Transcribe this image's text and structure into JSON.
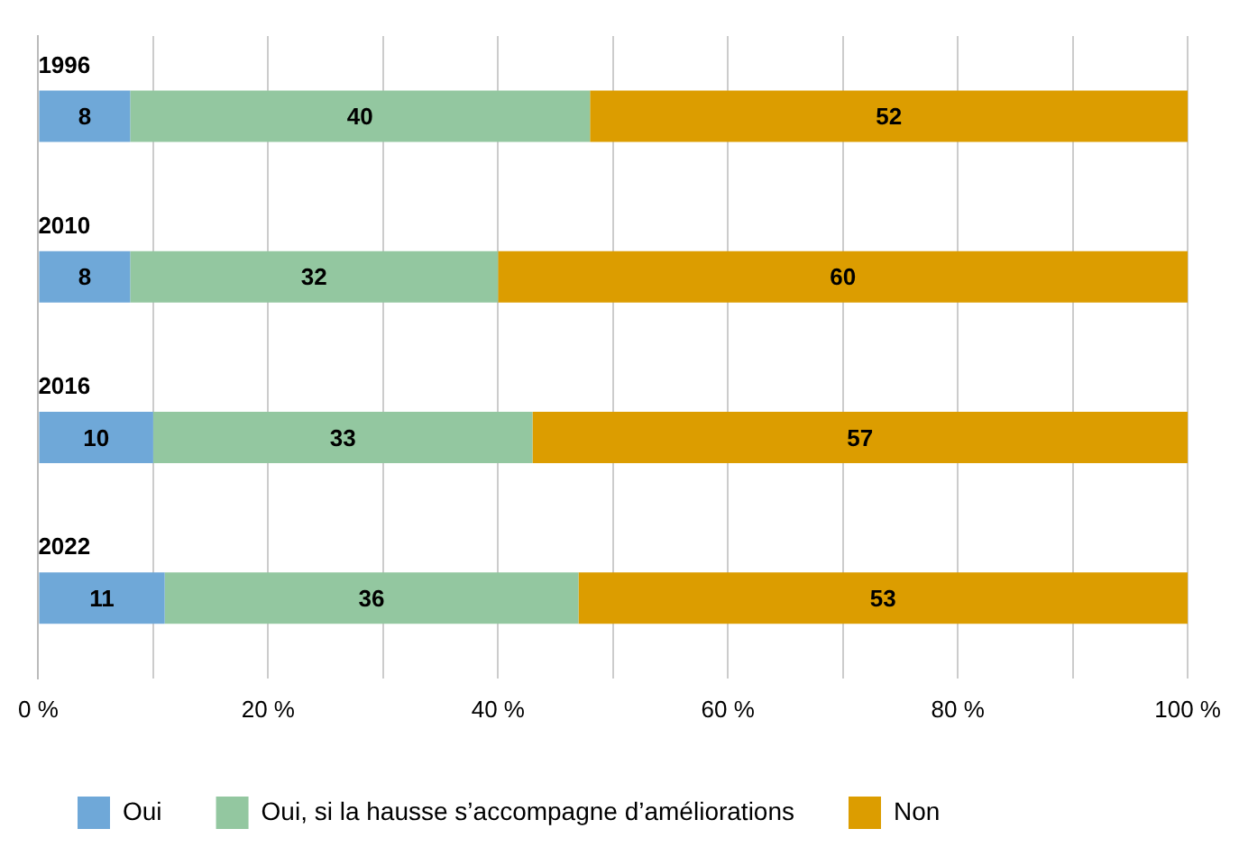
{
  "chart_data": {
    "type": "bar",
    "orientation": "horizontal",
    "stacked": true,
    "categories": [
      "1996",
      "2010",
      "2016",
      "2022"
    ],
    "series": [
      {
        "name": "Oui",
        "color": "#6fa8d8",
        "values": [
          8,
          8,
          10,
          11
        ]
      },
      {
        "name": "Oui, si la hausse s’accompagne d’améliorations",
        "color": "#93c7a0",
        "values": [
          40,
          32,
          33,
          36
        ]
      },
      {
        "name": "Non",
        "color": "#dc9d00",
        "values": [
          52,
          60,
          57,
          53
        ]
      }
    ],
    "xlim": [
      0,
      100
    ],
    "xticks": [
      {
        "value": 0,
        "label": "0 %"
      },
      {
        "value": 10,
        "label": null
      },
      {
        "value": 20,
        "label": "20 %"
      },
      {
        "value": 30,
        "label": null
      },
      {
        "value": 40,
        "label": "40 %"
      },
      {
        "value": 50,
        "label": null
      },
      {
        "value": 60,
        "label": "60 %"
      },
      {
        "value": 70,
        "label": null
      },
      {
        "value": 80,
        "label": "80 %"
      },
      {
        "value": 90,
        "label": null
      },
      {
        "value": 100,
        "label": "100 %"
      }
    ],
    "grid": "x",
    "legend": "bottom left",
    "data_labels": true
  }
}
